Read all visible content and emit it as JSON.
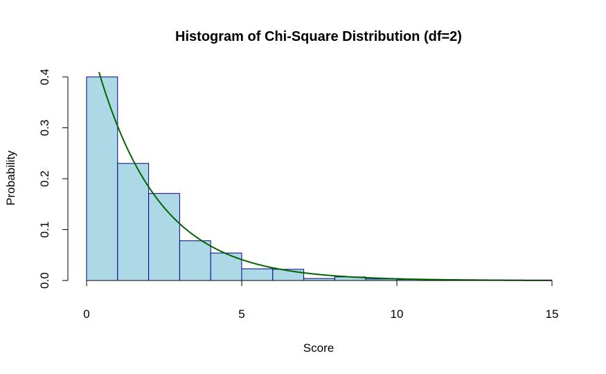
{
  "chart_data": {
    "type": "bar",
    "title": "Histogram of Chi-Square Distribution (df=2)",
    "xlabel": "Score",
    "ylabel": "Probability",
    "xlim": [
      0,
      15
    ],
    "ylim": [
      0,
      0.4
    ],
    "x_ticks": [
      "0",
      "5",
      "10",
      "15"
    ],
    "y_ticks": [
      "0.0",
      "0.1",
      "0.2",
      "0.3",
      "0.4"
    ],
    "bins": [
      {
        "start": 0,
        "end": 1,
        "value": 0.4
      },
      {
        "start": 1,
        "end": 2,
        "value": 0.23
      },
      {
        "start": 2,
        "end": 3,
        "value": 0.171
      },
      {
        "start": 3,
        "end": 4,
        "value": 0.078
      },
      {
        "start": 4,
        "end": 5,
        "value": 0.054
      },
      {
        "start": 5,
        "end": 6,
        "value": 0.023
      },
      {
        "start": 6,
        "end": 7,
        "value": 0.022
      },
      {
        "start": 7,
        "end": 8,
        "value": 0.004
      },
      {
        "start": 8,
        "end": 9,
        "value": 0.007
      },
      {
        "start": 9,
        "end": 10,
        "value": 0.003
      },
      {
        "start": 10,
        "end": 11,
        "value": 0.002
      },
      {
        "start": 11,
        "end": 12,
        "value": 0.001
      },
      {
        "start": 12,
        "end": 13,
        "value": 0.001
      }
    ],
    "density_curve": {
      "name": "",
      "function": "chi-square density, df=2 (0.5*exp(-x/2))",
      "x_range": [
        0.4,
        15
      ]
    },
    "grid": false,
    "legend": "none",
    "colors": {
      "bar_fill": "#add8e6",
      "bar_border": "#00008b",
      "curve": "#006400"
    }
  }
}
